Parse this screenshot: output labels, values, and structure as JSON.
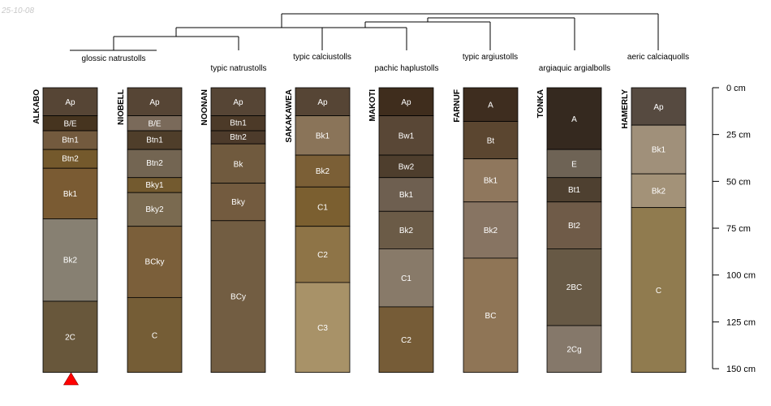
{
  "stamp": "25-10-08",
  "depth_axis": {
    "max": 150,
    "ticks": [
      {
        "value": 0,
        "label": "0 cm"
      },
      {
        "value": 25,
        "label": "25 cm"
      },
      {
        "value": 50,
        "label": "50 cm"
      },
      {
        "value": 75,
        "label": "75 cm"
      },
      {
        "value": 100,
        "label": "100 cm"
      },
      {
        "value": 125,
        "label": "125 cm"
      },
      {
        "value": 150,
        "label": "150 cm"
      }
    ]
  },
  "taxa": [
    "glossic natrustolls",
    "typic natrustolls",
    "typic calciustolls",
    "pachic haplustolls",
    "typic argiustolls",
    "argiaquic argialbolls",
    "aeric calciaquolls"
  ],
  "marker_color": "#ff0000",
  "profiles": [
    {
      "name": "ALKABO",
      "horizons": [
        {
          "name": "Ap",
          "top": 0,
          "bottom": 15,
          "color": "#564535"
        },
        {
          "name": "B/E",
          "top": 15,
          "bottom": 23,
          "color": "#46341f"
        },
        {
          "name": "Btn1",
          "top": 23,
          "bottom": 33,
          "color": "#735a3e"
        },
        {
          "name": "Btn2",
          "top": 33,
          "bottom": 43,
          "color": "#74592c"
        },
        {
          "name": "Bk1",
          "top": 43,
          "bottom": 70,
          "color": "#7a5b33"
        },
        {
          "name": "Bk2",
          "top": 70,
          "bottom": 114,
          "color": "#878072"
        },
        {
          "name": "2C",
          "top": 114,
          "bottom": 152,
          "color": "#68573b"
        }
      ]
    },
    {
      "name": "NIOBELL",
      "horizons": [
        {
          "name": "Ap",
          "top": 0,
          "bottom": 15,
          "color": "#564535"
        },
        {
          "name": "B/E",
          "top": 15,
          "bottom": 23,
          "color": "#7a6a5a"
        },
        {
          "name": "Btn1",
          "top": 23,
          "bottom": 33,
          "color": "#4f3e2a"
        },
        {
          "name": "Btn2",
          "top": 33,
          "bottom": 48,
          "color": "#736552"
        },
        {
          "name": "Bky1",
          "top": 48,
          "bottom": 56,
          "color": "#735a2f"
        },
        {
          "name": "Bky2",
          "top": 56,
          "bottom": 74,
          "color": "#7a6a50"
        },
        {
          "name": "BCky",
          "top": 74,
          "bottom": 112,
          "color": "#7b5f3a"
        },
        {
          "name": "C",
          "top": 112,
          "bottom": 152,
          "color": "#755d36"
        }
      ]
    },
    {
      "name": "NOONAN",
      "horizons": [
        {
          "name": "Ap",
          "top": 0,
          "bottom": 15,
          "color": "#564535"
        },
        {
          "name": "Btn1",
          "top": 15,
          "bottom": 23,
          "color": "#4c3a28"
        },
        {
          "name": "Btn2",
          "top": 23,
          "bottom": 30,
          "color": "#4d3b2b"
        },
        {
          "name": "Bk",
          "top": 30,
          "bottom": 51,
          "color": "#705a3e"
        },
        {
          "name": "Bky",
          "top": 51,
          "bottom": 71,
          "color": "#735b3f"
        },
        {
          "name": "BCy",
          "top": 71,
          "bottom": 152,
          "color": "#725d42"
        }
      ]
    },
    {
      "name": "SAKAKAWEA",
      "horizons": [
        {
          "name": "Ap",
          "top": 0,
          "bottom": 15,
          "color": "#564535"
        },
        {
          "name": "Bk1",
          "top": 15,
          "bottom": 36,
          "color": "#8a7459"
        },
        {
          "name": "Bk2",
          "top": 36,
          "bottom": 53,
          "color": "#7b5f36"
        },
        {
          "name": "C1",
          "top": 53,
          "bottom": 74,
          "color": "#7b5f30"
        },
        {
          "name": "C2",
          "top": 74,
          "bottom": 104,
          "color": "#8e7447"
        },
        {
          "name": "C3",
          "top": 104,
          "bottom": 152,
          "color": "#a89268"
        }
      ]
    },
    {
      "name": "MAKOTI",
      "horizons": [
        {
          "name": "Ap",
          "top": 0,
          "bottom": 15,
          "color": "#3f2d1d"
        },
        {
          "name": "Bw1",
          "top": 15,
          "bottom": 36,
          "color": "#594736"
        },
        {
          "name": "Bw2",
          "top": 36,
          "bottom": 48,
          "color": "#4e3e2d"
        },
        {
          "name": "Bk1",
          "top": 48,
          "bottom": 66,
          "color": "#6e5f50"
        },
        {
          "name": "Bk2",
          "top": 66,
          "bottom": 86,
          "color": "#6b5b47"
        },
        {
          "name": "C1",
          "top": 86,
          "bottom": 117,
          "color": "#887a69"
        },
        {
          "name": "C2",
          "top": 117,
          "bottom": 152,
          "color": "#765c37"
        }
      ]
    },
    {
      "name": "FARNUF",
      "horizons": [
        {
          "name": "A",
          "top": 0,
          "bottom": 18,
          "color": "#3e2d1f"
        },
        {
          "name": "Bt",
          "top": 18,
          "bottom": 38,
          "color": "#5b4630"
        },
        {
          "name": "Bk1",
          "top": 38,
          "bottom": 61,
          "color": "#8f775d"
        },
        {
          "name": "Bk2",
          "top": 61,
          "bottom": 91,
          "color": "#877462"
        },
        {
          "name": "BC",
          "top": 91,
          "bottom": 152,
          "color": "#8f7556"
        }
      ]
    },
    {
      "name": "TONKA",
      "horizons": [
        {
          "name": "A",
          "top": 0,
          "bottom": 33,
          "color": "#35291f"
        },
        {
          "name": "E",
          "top": 33,
          "bottom": 48,
          "color": "#6e6355"
        },
        {
          "name": "Bt1",
          "top": 48,
          "bottom": 61,
          "color": "#4e4030"
        },
        {
          "name": "Bt2",
          "top": 61,
          "bottom": 86,
          "color": "#6f5b48"
        },
        {
          "name": "2BC",
          "top": 86,
          "bottom": 127,
          "color": "#675945"
        },
        {
          "name": "2Cg",
          "top": 127,
          "bottom": 152,
          "color": "#85786a"
        }
      ]
    },
    {
      "name": "HAMERLY",
      "horizons": [
        {
          "name": "Ap",
          "top": 0,
          "bottom": 20,
          "color": "#564a40"
        },
        {
          "name": "Bk1",
          "top": 20,
          "bottom": 46,
          "color": "#a0907a"
        },
        {
          "name": "Bk2",
          "top": 46,
          "bottom": 64,
          "color": "#a39278"
        },
        {
          "name": "C",
          "top": 64,
          "bottom": 152,
          "color": "#907b4f"
        }
      ]
    }
  ]
}
